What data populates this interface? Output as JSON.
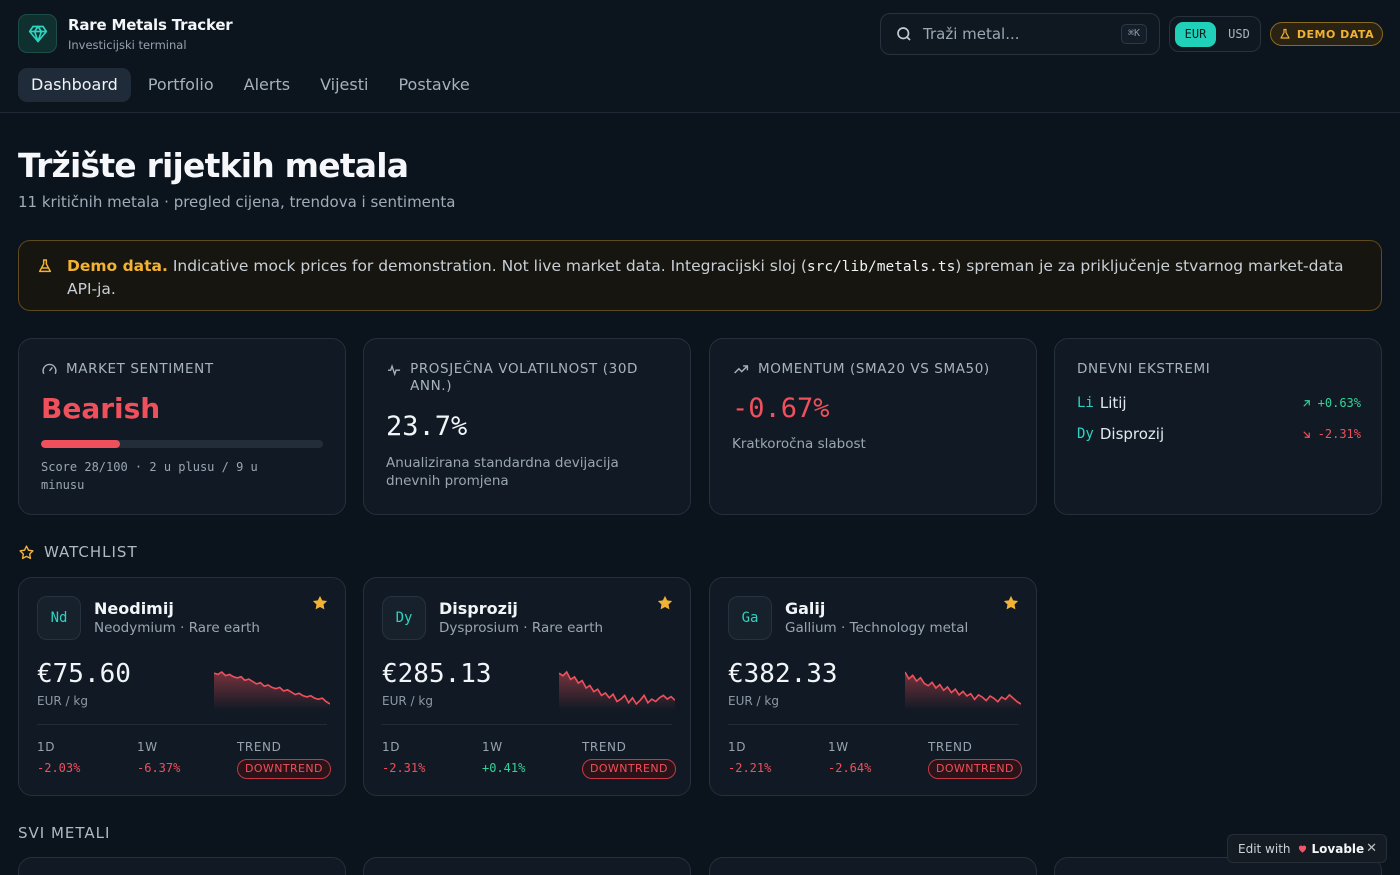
{
  "header": {
    "app_title": "Rare Metals Tracker",
    "app_subtitle": "Investicijski terminal",
    "search_placeholder": "Traži metal...",
    "search_shortcut": "⌘K",
    "currency_options": [
      "EUR",
      "USD"
    ],
    "currency_selected": "EUR",
    "demo_badge": "DEMO DATA",
    "nav": [
      {
        "label": "Dashboard",
        "active": true
      },
      {
        "label": "Portfolio",
        "active": false
      },
      {
        "label": "Alerts",
        "active": false
      },
      {
        "label": "Vijesti",
        "active": false
      },
      {
        "label": "Postavke",
        "active": false
      }
    ]
  },
  "page": {
    "title": "Tržište rijetkih metala",
    "subtitle": "11 kritičnih metala · pregled cijena, trendova i sentimenta"
  },
  "notice": {
    "bold": "Demo data.",
    "text_before_code": " Indicative mock prices for demonstration. Not live market data. Integracijski sloj (",
    "code": "src/lib/metals.ts",
    "text_after_code": ") spreman je za priključenje stvarnog market-data API-ja."
  },
  "stats": {
    "sentiment": {
      "label": "MARKET SENTIMENT",
      "value": "Bearish",
      "score": 28,
      "note": "Score 28/100 · 2 u plusu / 9 u minusu",
      "color": "#f0505c"
    },
    "volatility": {
      "label": "PROSJEČNA VOLATILNOST (30D ANN.)",
      "value": "23.7%",
      "note": "Anualizirana standardna devijacija dnevnih promjena"
    },
    "momentum": {
      "label": "MOMENTUM (SMA20 VS SMA50)",
      "value": "-0.67%",
      "note": "Kratkoročna slabost"
    },
    "extremes": {
      "label": "DNEVNI EKSTREMI",
      "items": [
        {
          "symbol": "Li",
          "name": "Litij",
          "change": "+0.63%",
          "direction": "up"
        },
        {
          "symbol": "Dy",
          "name": "Disprozij",
          "change": "-2.31%",
          "direction": "down"
        }
      ]
    }
  },
  "watchlist": {
    "label": "WATCHLIST",
    "cards": [
      {
        "symbol": "Nd",
        "name": "Neodimij",
        "subtitle": "Neodymium · Rare earth",
        "price": "€75.60",
        "unit": "EUR / kg",
        "d1_label": "1D",
        "d1": "-2.03%",
        "d1_dir": "down",
        "w1_label": "1W",
        "w1": "-6.37%",
        "w1_dir": "down",
        "trend_label": "TREND",
        "trend": "DOWNTREND",
        "spark": [
          30,
          29,
          31,
          28,
          29,
          27,
          26,
          27,
          24,
          25,
          23,
          21,
          22,
          19,
          20,
          18,
          17,
          18,
          15,
          16,
          14,
          12,
          13,
          11,
          10,
          11,
          9,
          8,
          9,
          6,
          4
        ]
      },
      {
        "symbol": "Dy",
        "name": "Disprozij",
        "subtitle": "Dysprosium · Rare earth",
        "price": "€285.13",
        "unit": "EUR / kg",
        "d1_label": "1D",
        "d1": "-2.31%",
        "d1_dir": "down",
        "w1_label": "1W",
        "w1": "+0.41%",
        "w1_dir": "up",
        "trend_label": "TREND",
        "trend": "DOWNTREND",
        "spark": [
          30,
          28,
          31,
          25,
          27,
          22,
          24,
          18,
          20,
          15,
          17,
          12,
          14,
          10,
          13,
          7,
          9,
          12,
          6,
          10,
          5,
          8,
          12,
          6,
          9,
          7,
          10,
          12,
          9,
          11,
          8
        ]
      },
      {
        "symbol": "Ga",
        "name": "Galij",
        "subtitle": "Gallium · Technology metal",
        "price": "€382.33",
        "unit": "EUR / kg",
        "d1_label": "1D",
        "d1": "-2.21%",
        "d1_dir": "down",
        "w1_label": "1W",
        "w1": "-2.64%",
        "w1_dir": "down",
        "trend_label": "TREND",
        "trend": "DOWNTREND",
        "spark": [
          32,
          26,
          29,
          24,
          27,
          22,
          20,
          23,
          18,
          21,
          16,
          19,
          14,
          17,
          12,
          15,
          11,
          13,
          8,
          12,
          10,
          7,
          11,
          9,
          6,
          10,
          8,
          12,
          9,
          6,
          4
        ]
      }
    ]
  },
  "all_metals_label": "SVI METALI",
  "lovable": {
    "prefix": "Edit with",
    "brand": "Lovable",
    "close": "✕"
  },
  "colors": {
    "accent": "#20d0b8",
    "negative": "#f0505c",
    "positive": "#34d399",
    "warning": "#f2b233",
    "background": "#0b131c"
  }
}
